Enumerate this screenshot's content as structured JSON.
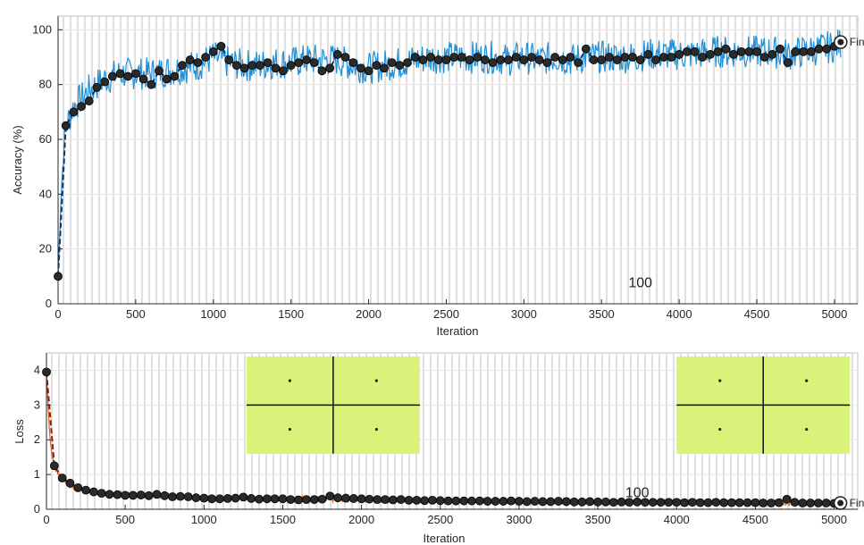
{
  "chart_data": [
    {
      "type": "line",
      "ylabel": "Accuracy (%)",
      "xlabel": "Iteration",
      "xlim": [
        0,
        5150
      ],
      "ylim": [
        0,
        105
      ],
      "xticks": [
        0,
        500,
        1000,
        1500,
        2000,
        2500,
        3000,
        3500,
        4000,
        4500,
        5000
      ],
      "yticks": [
        0,
        20,
        40,
        60,
        80,
        100
      ],
      "grid": true,
      "annotation": "100",
      "annotation_pos": [
        3750,
        6
      ],
      "end_label": "Fina",
      "colors": {
        "raw": "#1f8fd8",
        "smoothed": "#0d3a6b",
        "marker": "#2a2a2a",
        "grid": "#d9d9d9"
      },
      "final_point": {
        "x": 5040,
        "y": 95.5
      },
      "series": [
        {
          "role": "raw-noisy",
          "noise_amplitude": 6,
          "x": [
            0,
            20,
            40,
            60,
            80,
            100,
            150,
            200,
            250,
            300,
            400,
            500,
            600,
            700,
            800,
            900,
            1000,
            1100,
            1200,
            1300,
            1400,
            1500,
            1600,
            1700,
            1800,
            1900,
            2000,
            2100,
            2200,
            2300,
            2400,
            2500,
            2600,
            2700,
            2800,
            2900,
            3000,
            3100,
            3200,
            3300,
            3400,
            3500,
            3600,
            3700,
            3800,
            3900,
            4000,
            4100,
            4200,
            4300,
            4400,
            4500,
            4600,
            4700,
            4800,
            4900,
            5000,
            5040
          ],
          "values": [
            10,
            40,
            60,
            66,
            69,
            72,
            75,
            78,
            80,
            82,
            84,
            84,
            84,
            85,
            86,
            87,
            90,
            88,
            87,
            87,
            88,
            88,
            89,
            89,
            89,
            87,
            86,
            87,
            88,
            89,
            90,
            90,
            90,
            90,
            90,
            89,
            90,
            89,
            90,
            89,
            90,
            90,
            90,
            90,
            91,
            91,
            91,
            91,
            92,
            92,
            92,
            92,
            92,
            91,
            92,
            93,
            94,
            95
          ]
        },
        {
          "role": "validation-markers",
          "x": [
            0,
            50,
            100,
            150,
            200,
            250,
            300,
            350,
            400,
            450,
            500,
            550,
            600,
            650,
            700,
            750,
            800,
            850,
            900,
            950,
            1000,
            1050,
            1100,
            1150,
            1200,
            1250,
            1300,
            1350,
            1400,
            1450,
            1500,
            1550,
            1600,
            1650,
            1700,
            1750,
            1800,
            1850,
            1900,
            1950,
            2000,
            2050,
            2100,
            2150,
            2200,
            2250,
            2300,
            2350,
            2400,
            2450,
            2500,
            2550,
            2600,
            2650,
            2700,
            2750,
            2800,
            2850,
            2900,
            2950,
            3000,
            3050,
            3100,
            3150,
            3200,
            3250,
            3300,
            3350,
            3400,
            3450,
            3500,
            3550,
            3600,
            3650,
            3700,
            3750,
            3800,
            3850,
            3900,
            3950,
            4000,
            4050,
            4100,
            4150,
            4200,
            4250,
            4300,
            4350,
            4400,
            4450,
            4500,
            4550,
            4600,
            4650,
            4700,
            4750,
            4800,
            4850,
            4900,
            4950,
            5000,
            5040
          ],
          "values": [
            10,
            65,
            70,
            72,
            74,
            79,
            81,
            83,
            84,
            83,
            84,
            82,
            80,
            85,
            82,
            83,
            87,
            89,
            88,
            90,
            92,
            94,
            89,
            87,
            86,
            87,
            87,
            88,
            86,
            85,
            87,
            88,
            89,
            88,
            85,
            86,
            91,
            90,
            88,
            86,
            85,
            87,
            86,
            88,
            87,
            88,
            90,
            89,
            90,
            89,
            89,
            90,
            90,
            89,
            90,
            89,
            88,
            89,
            89,
            90,
            89,
            90,
            89,
            88,
            90,
            89,
            90,
            88,
            93,
            89,
            89,
            90,
            89,
            90,
            90,
            89,
            91,
            89,
            90,
            90,
            91,
            92,
            92,
            90,
            91,
            92,
            93,
            91,
            92,
            92,
            92,
            90,
            91,
            93,
            88,
            92,
            92,
            92,
            93,
            93,
            94,
            95
          ]
        }
      ]
    },
    {
      "type": "line",
      "ylabel": "Loss",
      "xlabel": "Iteration",
      "xlim": [
        0,
        5150
      ],
      "ylim": [
        0,
        4.5
      ],
      "xticks": [
        0,
        500,
        1000,
        1500,
        2000,
        2500,
        3000,
        3500,
        4000,
        4500,
        5000
      ],
      "yticks": [
        0,
        1,
        2,
        3,
        4
      ],
      "grid": true,
      "annotation": "100",
      "annotation_pos": [
        3750,
        0.35
      ],
      "end_label": "Fina",
      "colors": {
        "raw": "#e0651b",
        "smoothed": "#8b1a1a",
        "marker": "#2a2a2a",
        "grid": "#d9d9d9",
        "inset_fill": "#d9f27a",
        "inset_line": "#111111"
      },
      "final_point": {
        "x": 5040,
        "y": 0.18
      },
      "insets": [
        {
          "x0": 1270,
          "x1": 2370,
          "y0": 1.6,
          "y1": 4.4
        },
        {
          "x0": 4000,
          "x1": 5100,
          "y0": 1.6,
          "y1": 4.4
        }
      ],
      "series": [
        {
          "role": "raw-noisy",
          "noise_amplitude": 0.08,
          "x": [
            0,
            10,
            20,
            30,
            40,
            50,
            75,
            100,
            150,
            200,
            300,
            400,
            500,
            700,
            1000,
            1500,
            2000,
            2500,
            3000,
            3500,
            4000,
            4500,
            5040
          ],
          "values": [
            4.0,
            3.0,
            2.2,
            1.7,
            1.45,
            1.25,
            1.0,
            0.85,
            0.7,
            0.6,
            0.5,
            0.45,
            0.42,
            0.4,
            0.34,
            0.3,
            0.28,
            0.25,
            0.24,
            0.22,
            0.21,
            0.2,
            0.18
          ]
        },
        {
          "role": "validation-markers",
          "x": [
            0,
            50,
            100,
            150,
            200,
            250,
            300,
            350,
            400,
            450,
            500,
            550,
            600,
            650,
            700,
            750,
            800,
            850,
            900,
            950,
            1000,
            1050,
            1100,
            1150,
            1200,
            1250,
            1300,
            1350,
            1400,
            1450,
            1500,
            1550,
            1600,
            1650,
            1700,
            1750,
            1800,
            1850,
            1900,
            1950,
            2000,
            2050,
            2100,
            2150,
            2200,
            2250,
            2300,
            2350,
            2400,
            2450,
            2500,
            2550,
            2600,
            2650,
            2700,
            2750,
            2800,
            2850,
            2900,
            2950,
            3000,
            3050,
            3100,
            3150,
            3200,
            3250,
            3300,
            3350,
            3400,
            3450,
            3500,
            3550,
            3600,
            3650,
            3700,
            3750,
            3800,
            3850,
            3900,
            3950,
            4000,
            4050,
            4100,
            4150,
            4200,
            4250,
            4300,
            4350,
            4400,
            4450,
            4500,
            4550,
            4600,
            4650,
            4700,
            4750,
            4800,
            4850,
            4900,
            4950,
            5000,
            5040
          ],
          "values": [
            3.95,
            1.25,
            0.9,
            0.75,
            0.62,
            0.55,
            0.5,
            0.46,
            0.43,
            0.42,
            0.4,
            0.4,
            0.41,
            0.39,
            0.43,
            0.39,
            0.36,
            0.37,
            0.36,
            0.33,
            0.32,
            0.3,
            0.3,
            0.31,
            0.32,
            0.35,
            0.31,
            0.29,
            0.3,
            0.3,
            0.3,
            0.28,
            0.27,
            0.28,
            0.28,
            0.29,
            0.38,
            0.33,
            0.32,
            0.31,
            0.3,
            0.29,
            0.28,
            0.28,
            0.27,
            0.28,
            0.26,
            0.26,
            0.25,
            0.26,
            0.25,
            0.24,
            0.24,
            0.24,
            0.24,
            0.24,
            0.23,
            0.23,
            0.23,
            0.24,
            0.23,
            0.22,
            0.23,
            0.22,
            0.22,
            0.23,
            0.22,
            0.21,
            0.21,
            0.22,
            0.21,
            0.21,
            0.2,
            0.21,
            0.2,
            0.21,
            0.2,
            0.2,
            0.2,
            0.2,
            0.2,
            0.19,
            0.2,
            0.19,
            0.19,
            0.2,
            0.19,
            0.19,
            0.19,
            0.19,
            0.19,
            0.18,
            0.18,
            0.19,
            0.29,
            0.2,
            0.18,
            0.18,
            0.18,
            0.18,
            0.17,
            0.18
          ]
        }
      ]
    }
  ]
}
